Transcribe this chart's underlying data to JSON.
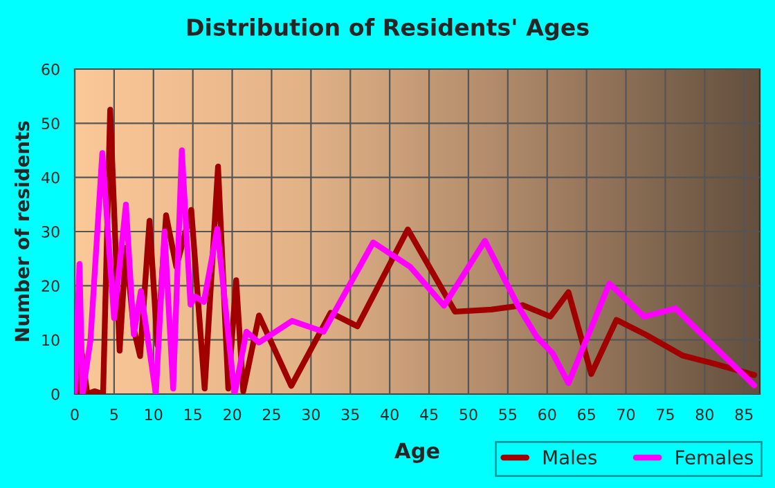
{
  "chart_data": {
    "type": "line",
    "title": "Distribution of Residents' Ages",
    "xlabel": "Age",
    "ylabel": "Number of residents",
    "xlim": [
      0,
      87
    ],
    "xticks": [
      0,
      5,
      10,
      15,
      20,
      25,
      30,
      35,
      40,
      45,
      50,
      55,
      60,
      65,
      70,
      75,
      80,
      85
    ],
    "ylim": [
      0,
      60
    ],
    "yticks": [
      0,
      10,
      20,
      30,
      40,
      50,
      60
    ],
    "grid": true,
    "legend": "bottom right",
    "marker": "none",
    "line_style": "solid",
    "series": [
      {
        "name": "Males",
        "color": "#a00000",
        "x": [
          0,
          0.3,
          0.9,
          1.6,
          2.5,
          3.6,
          4.5,
          5.7,
          6.5,
          7.5,
          8.3,
          9.5,
          10.5,
          11.6,
          12.9,
          14.8,
          16.5,
          18.2,
          19.5,
          20.5,
          21.4,
          23.4,
          27.5,
          32.5,
          35.9,
          42.3,
          48.3,
          52.9,
          56.9,
          60.4,
          62.7,
          65.6,
          68.8,
          72.6,
          77.2,
          80.7,
          86.3
        ],
        "values": [
          9.5,
          0,
          7.5,
          0,
          0.5,
          0,
          52.5,
          8,
          27,
          12,
          7,
          32,
          9,
          33,
          23.5,
          34,
          1,
          42,
          1,
          21,
          0.5,
          14.5,
          1.5,
          15,
          12.5,
          30.4,
          15.2,
          15.6,
          16.4,
          14.3,
          18.8,
          3.7,
          13.7,
          10.9,
          7.1,
          5.8,
          3.5
        ]
      },
      {
        "name": "Females",
        "color": "#ff00ff",
        "x": [
          0,
          0.6,
          1,
          2,
          3.5,
          5,
          6.5,
          7.5,
          8.4,
          10.3,
          11.4,
          12.5,
          13.6,
          14.7,
          15.3,
          16.4,
          18.1,
          20.3,
          21.8,
          23.4,
          27.6,
          31.6,
          37.9,
          42.6,
          46.9,
          52.1,
          56.4,
          58.7,
          60.7,
          62.7,
          67.9,
          72.3,
          76.3,
          81.2,
          86.3
        ],
        "values": [
          0,
          24,
          0,
          10,
          44.5,
          14,
          35,
          11,
          19,
          0,
          30,
          1,
          45,
          16.5,
          18,
          17,
          30.5,
          0,
          11.5,
          9.5,
          13.5,
          11.5,
          28,
          23.5,
          16.3,
          28.3,
          16,
          10.5,
          7.5,
          2,
          20.4,
          14.3,
          15.8,
          8.8,
          1.6
        ]
      }
    ]
  }
}
